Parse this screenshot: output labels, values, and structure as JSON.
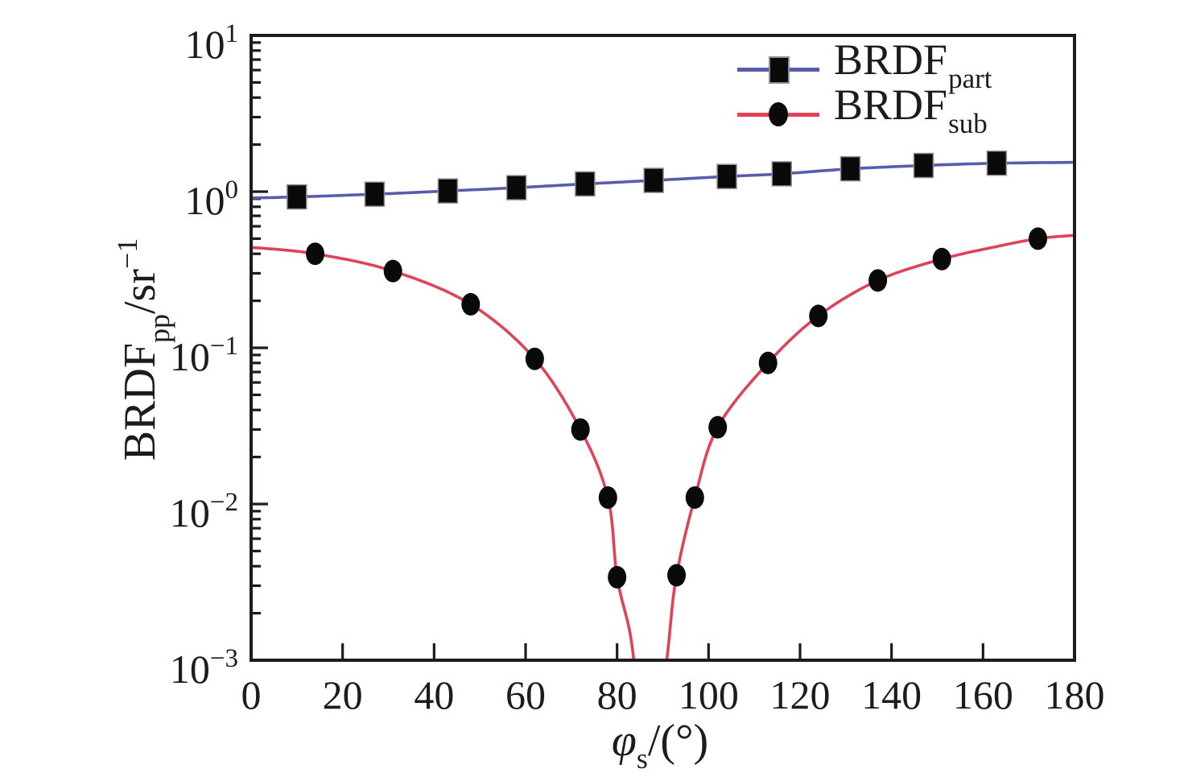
{
  "figure": {
    "background": "#ffffff",
    "ink_color": "#1c1c1c",
    "marker_color": "#0a0a0a"
  },
  "legend": {
    "items": [
      {
        "main": "BRDF",
        "sub": "part"
      },
      {
        "main": "BRDF",
        "sub": "sub"
      }
    ]
  },
  "chart_data": {
    "type": "line",
    "title": "",
    "xlabel": {
      "symbol": "φ",
      "sub": "s",
      "unit": "/(°)"
    },
    "ylabel": {
      "main": "BRDF",
      "sub": "pp",
      "unit": "/sr",
      "sup": "−1"
    },
    "x_range": [
      0,
      180
    ],
    "y_log_range": [
      -3,
      1
    ],
    "x_ticks": [
      "0",
      "20",
      "40",
      "60",
      "80",
      "100",
      "120",
      "140",
      "160",
      "180"
    ],
    "y_ticks": [
      {
        "base": "10",
        "exp": "1",
        "e": 1
      },
      {
        "base": "10",
        "exp": "0",
        "e": 0
      },
      {
        "base": "10",
        "exp": "−1",
        "e": -1
      },
      {
        "base": "10",
        "exp": "−2",
        "e": -2
      },
      {
        "base": "10",
        "exp": "−3",
        "e": -3
      }
    ],
    "grid": false,
    "legend_position": "top-right",
    "series": [
      {
        "name": "BRDF_part",
        "marker": "square",
        "color": "#575cad",
        "points": [
          [
            10,
            0.925
          ],
          [
            27,
            0.963
          ],
          [
            43,
            1.01
          ],
          [
            58,
            1.06
          ],
          [
            73,
            1.12
          ],
          [
            88,
            1.18
          ],
          [
            104,
            1.25
          ],
          [
            116,
            1.3
          ],
          [
            131,
            1.4
          ],
          [
            147,
            1.47
          ],
          [
            163,
            1.52
          ]
        ],
        "curves": [
          [
            [
              0,
              0.91
            ],
            [
              10,
              0.925
            ],
            [
              27,
              0.963
            ],
            [
              43,
              1.01
            ],
            [
              58,
              1.06
            ],
            [
              73,
              1.12
            ],
            [
              88,
              1.18
            ],
            [
              104,
              1.25
            ],
            [
              116,
              1.3
            ],
            [
              131,
              1.4
            ],
            [
              147,
              1.47
            ],
            [
              163,
              1.52
            ],
            [
              180,
              1.54
            ]
          ]
        ]
      },
      {
        "name": "BRDF_sub",
        "marker": "circle",
        "color": "#e04258",
        "points": [
          [
            14,
            0.4
          ],
          [
            31,
            0.31
          ],
          [
            48,
            0.19
          ],
          [
            62,
            0.085
          ],
          [
            72,
            0.03
          ],
          [
            78,
            0.011
          ],
          [
            80,
            0.0034
          ],
          [
            93,
            0.0035
          ],
          [
            97,
            0.011
          ],
          [
            102,
            0.031
          ],
          [
            113,
            0.08
          ],
          [
            124,
            0.16
          ],
          [
            137,
            0.27
          ],
          [
            151,
            0.37
          ],
          [
            172,
            0.5
          ]
        ],
        "curves": [
          [
            [
              0,
              0.44
            ],
            [
              14,
              0.4
            ],
            [
              31,
              0.31
            ],
            [
              48,
              0.19
            ],
            [
              62,
              0.085
            ],
            [
              72,
              0.03
            ],
            [
              78,
              0.011
            ],
            [
              80,
              0.0034
            ],
            [
              83,
              0.0014
            ],
            [
              84.5,
              0.0005
            ],
            [
              85.5,
              0.00013
            ]
          ],
          [
            [
              88.8,
              0.0001
            ],
            [
              89.8,
              0.00045
            ],
            [
              91.3,
              0.0013
            ],
            [
              93,
              0.0035
            ],
            [
              97,
              0.011
            ],
            [
              102,
              0.031
            ],
            [
              113,
              0.08
            ],
            [
              124,
              0.16
            ],
            [
              137,
              0.27
            ],
            [
              151,
              0.37
            ],
            [
              163,
              0.445
            ],
            [
              172,
              0.5
            ],
            [
              180,
              0.525
            ]
          ]
        ]
      }
    ]
  }
}
